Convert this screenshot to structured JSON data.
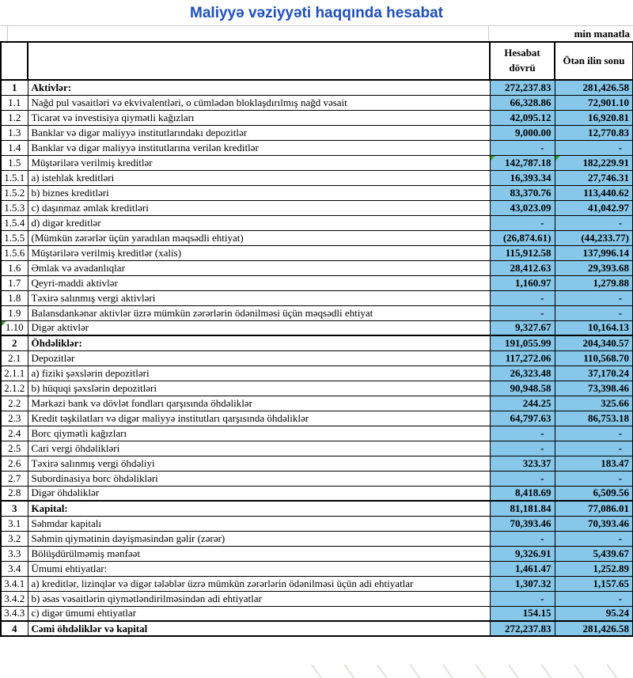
{
  "title": "Maliyyə vəziyyəti haqqında hesabat",
  "unit_note": "min manatla",
  "columns": {
    "current": "Hesabat dövrü",
    "previous": "Ötən ilin sonu"
  },
  "colors": {
    "title_blue": "#1e4fba",
    "value_cell_blue": "#87c7e9",
    "corner_marker_green": "#2fa12f",
    "border_black": "#000000"
  },
  "rows": [
    {
      "no": "1",
      "label": "Aktivlər:",
      "v1": "272,237.83",
      "v2": "281,426.58",
      "section": true,
      "markers": []
    },
    {
      "no": "1.1",
      "label": "Nağd pul vəsaitləri və  ekvivalentləri, o cümlədən bloklaşdırılmış nağd vəsait",
      "v1": "66,328.86",
      "v2": "72,901.10",
      "section": false,
      "markers": []
    },
    {
      "no": "1.2",
      "label": "Ticarət və investisiya qiymətli kağızları",
      "v1": "42,095.12",
      "v2": "16,920.81",
      "section": false,
      "markers": []
    },
    {
      "no": "1.3",
      "label": "Banklar və digər maliyyə institutlarındakı depozitlər",
      "v1": "9,000.00",
      "v2": "12,770.83",
      "section": false,
      "markers": []
    },
    {
      "no": "1.4",
      "label": "Banklar və digər maliyyə institutlarına verilən kreditlər",
      "v1": "-",
      "v2": "-",
      "section": false,
      "markers": []
    },
    {
      "no": "1.5",
      "label": "Müştərilərə verilmiş kreditlər",
      "v1": "142,787.18",
      "v2": "182,229.91",
      "section": false,
      "markers": [
        "v1",
        "v2"
      ]
    },
    {
      "no": "1.5.1",
      "label": "a) istehlak kreditləri",
      "v1": "16,393.34",
      "v2": "27,746.31",
      "section": false,
      "markers": []
    },
    {
      "no": "1.5.2",
      "label": "b) biznes kreditləri",
      "v1": "83,370.76",
      "v2": "113,440.62",
      "section": false,
      "markers": []
    },
    {
      "no": "1.5.3",
      "label": "c) daşınmaz əmlak kreditləri",
      "v1": "43,023.09",
      "v2": "41,042.97",
      "section": false,
      "markers": []
    },
    {
      "no": "1.5.4",
      "label": "d) digər kreditlər",
      "v1": "-",
      "v2": "-",
      "section": false,
      "markers": []
    },
    {
      "no": "1.5.5",
      "label": "(Mümkün zərərlər üçün yaradılan məqsədli ehtiyat)",
      "v1": "(26,874.61)",
      "v2": "(44,233.77)",
      "section": false,
      "markers": []
    },
    {
      "no": "1.5.6",
      "label": "Müştərilərə verilmiş kreditlər (xalis)",
      "v1": "115,912.58",
      "v2": "137,996.14",
      "section": false,
      "markers": []
    },
    {
      "no": "1.6",
      "label": "Əmlak və avadanlıqlar",
      "v1": "28,412.63",
      "v2": "29,393.68",
      "section": false,
      "markers": []
    },
    {
      "no": "1.7",
      "label": "Qeyri-maddi aktivlər",
      "v1": "1,160.97",
      "v2": "1,279.88",
      "section": false,
      "markers": []
    },
    {
      "no": "1.8",
      "label": "Təxirə salınmış vergi aktivləri",
      "v1": "-",
      "v2": "-",
      "section": false,
      "markers": []
    },
    {
      "no": "1.9",
      "label": "Balansdankənar aktivlər üzrə mümkün zərərlərin ödənilməsi üçün məqsədli ehtiyat",
      "v1": "-",
      "v2": "-",
      "section": false,
      "markers": []
    },
    {
      "no": "1.10",
      "label": "Digər aktivlər",
      "v1": "9,327.67",
      "v2": "10,164.13",
      "section": false,
      "markers": [
        "num"
      ]
    },
    {
      "no": "2",
      "label": "Öhdəliklər:",
      "v1": "191,055.99",
      "v2": "204,340.57",
      "section": true,
      "markers": []
    },
    {
      "no": "2.1",
      "label": "Depozitlər",
      "v1": "117,272.06",
      "v2": "110,568.70",
      "section": false,
      "markers": []
    },
    {
      "no": "2.1.1",
      "label": "a) fiziki şəxslərin depozitləri",
      "v1": "26,323.48",
      "v2": "37,170.24",
      "section": false,
      "markers": []
    },
    {
      "no": "2.1.2",
      "label": "b) hüquqi şəxslərin depozitləri",
      "v1": "90,948.58",
      "v2": "73,398.46",
      "section": false,
      "markers": []
    },
    {
      "no": "2.2",
      "label": "Mərkəzi bank və dövlət fondları qarşısında öhdəliklər",
      "v1": "244.25",
      "v2": "325.66",
      "section": false,
      "markers": []
    },
    {
      "no": "2.3",
      "label": "Kredit təşkilatları və digər maliyyə institutları qarşısında öhdəliklər",
      "v1": "64,797.63",
      "v2": "86,753.18",
      "section": false,
      "markers": []
    },
    {
      "no": "2.4",
      "label": "Borc qiymətli kağızları",
      "v1": "-",
      "v2": "-",
      "section": false,
      "markers": []
    },
    {
      "no": "2.5",
      "label": "Cari vergi öhdəlikləri",
      "v1": "-",
      "v2": "-",
      "section": false,
      "markers": []
    },
    {
      "no": "2.6",
      "label": "Təxirə salınmış vergi öhdəliyi",
      "v1": "323.37",
      "v2": "183.47",
      "section": false,
      "markers": []
    },
    {
      "no": "2.7",
      "label": "Subordinasiya borc öhdəlikləri",
      "v1": "-",
      "v2": "-",
      "section": false,
      "markers": []
    },
    {
      "no": "2.8",
      "label": "Digər öhdəliklər",
      "v1": "8,418.69",
      "v2": "6,509.56",
      "section": false,
      "markers": []
    },
    {
      "no": "3",
      "label": "Kapital:",
      "v1": "81,181.84",
      "v2": "77,086.01",
      "section": true,
      "markers": []
    },
    {
      "no": "3.1",
      "label": "Səhmdar kapitalı",
      "v1": "70,393.46",
      "v2": "70,393.46",
      "section": false,
      "markers": []
    },
    {
      "no": "3.2",
      "label": "Səhmin qiymətinin dəyişməsindən gəlir (zərər)",
      "v1": "-",
      "v2": "-",
      "section": false,
      "markers": []
    },
    {
      "no": "3.3",
      "label": "Bölüşdürülməmiş mənfəət",
      "v1": "9,326.91",
      "v2": "5,439.67",
      "section": false,
      "markers": []
    },
    {
      "no": "3.4",
      "label": "Ümumi ehtiyatlar:",
      "v1": "1,461.47",
      "v2": "1,252.89",
      "section": false,
      "markers": []
    },
    {
      "no": "3.4.1",
      "label": "a) kreditlər, lizinqlər və digər tələblər üzrə mümkün zərərlərin ödənilməsi üçün adi ehtiyatlar",
      "v1": "1,307.32",
      "v2": "1,157.65",
      "section": false,
      "markers": []
    },
    {
      "no": "3.4.2",
      "label": "b) əsas vəsaitlərin qiymətləndirilməsindən adi ehtiyatlar",
      "v1": "-",
      "v2": "-",
      "section": false,
      "markers": []
    },
    {
      "no": "3.4.3",
      "label": "c) digər ümumi ehtiyatlar",
      "v1": "154.15",
      "v2": "95.24",
      "section": false,
      "markers": []
    },
    {
      "no": "4",
      "label": "Cəmi öhdəliklər və kapital",
      "v1": "272,237.83",
      "v2": "281,426.58",
      "section": true,
      "markers": []
    }
  ]
}
